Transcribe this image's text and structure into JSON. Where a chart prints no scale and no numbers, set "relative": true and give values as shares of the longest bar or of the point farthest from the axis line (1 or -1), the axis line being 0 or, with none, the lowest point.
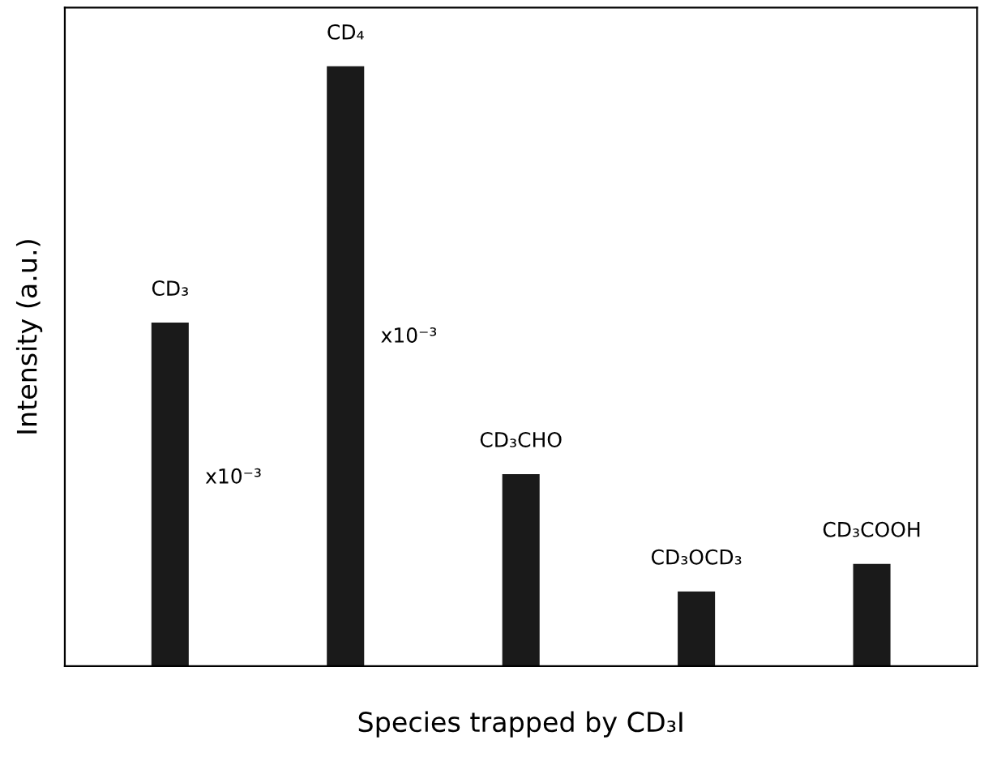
{
  "chart_data": {
    "type": "bar",
    "relative": true,
    "categories": [
      "CD₃",
      "CD₄",
      "CD₃CHO",
      "CD₃OCD₃",
      "CD₃COOH"
    ],
    "values": [
      0.572,
      1,
      0.319,
      0.123,
      0.169
    ],
    "color": "#1a1a1a",
    "xlabel": "Species trapped by CD₃I",
    "ylabel": "Intensity (a.u.)",
    "annotations": [
      "x10⁻³",
      "x10⁻³"
    ],
    "legend": false
  }
}
